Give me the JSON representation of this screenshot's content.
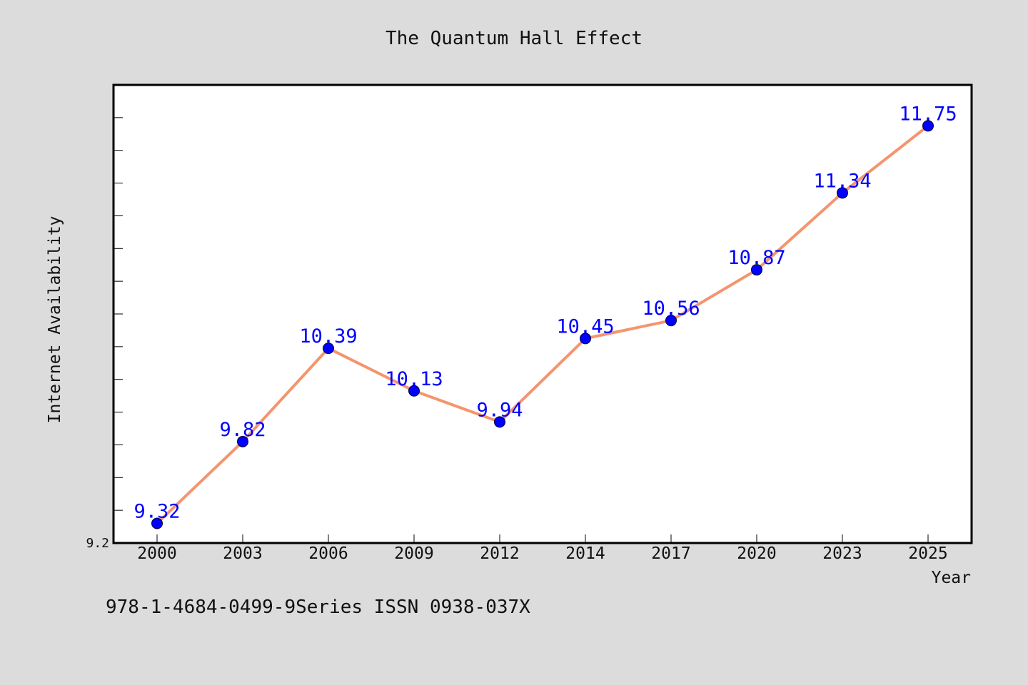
{
  "chart_data": {
    "type": "line",
    "title": "The Quantum Hall Effect",
    "xlabel": "Year",
    "ylabel": "Internet Availability",
    "categories": [
      "2000",
      "2003",
      "2006",
      "2009",
      "2012",
      "2014",
      "2017",
      "2020",
      "2023",
      "2025"
    ],
    "series": [
      {
        "values": [
          9.32,
          9.82,
          10.39,
          10.13,
          9.94,
          10.45,
          10.56,
          10.87,
          11.34,
          11.75
        ],
        "line_color": "#f4956e",
        "marker_color": "#0000ff",
        "label_color": "#0000ff"
      }
    ],
    "y_tick_labels": [
      "9.2"
    ],
    "ylim": [
      9.2,
      12.0
    ],
    "grid": false,
    "legend": "none"
  },
  "footer": {
    "text": "978-1-4684-0499-9Series ISSN 0938-037X"
  }
}
